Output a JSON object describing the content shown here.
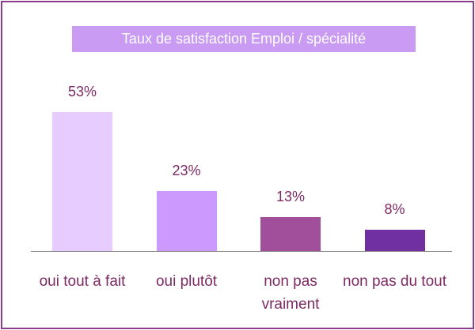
{
  "chart_data": {
    "type": "bar",
    "title": "Taux de satisfaction Emploi / spécialité",
    "categories": [
      "oui tout à fait",
      "oui plutôt",
      "non pas vraiment",
      "non pas du tout"
    ],
    "values": [
      53,
      23,
      13,
      8
    ],
    "value_labels": [
      "53%",
      "23%",
      "13%",
      "8%"
    ],
    "colors": [
      "#e6ccff",
      "#cc99ff",
      "#a14f9a",
      "#7030a0"
    ]
  }
}
